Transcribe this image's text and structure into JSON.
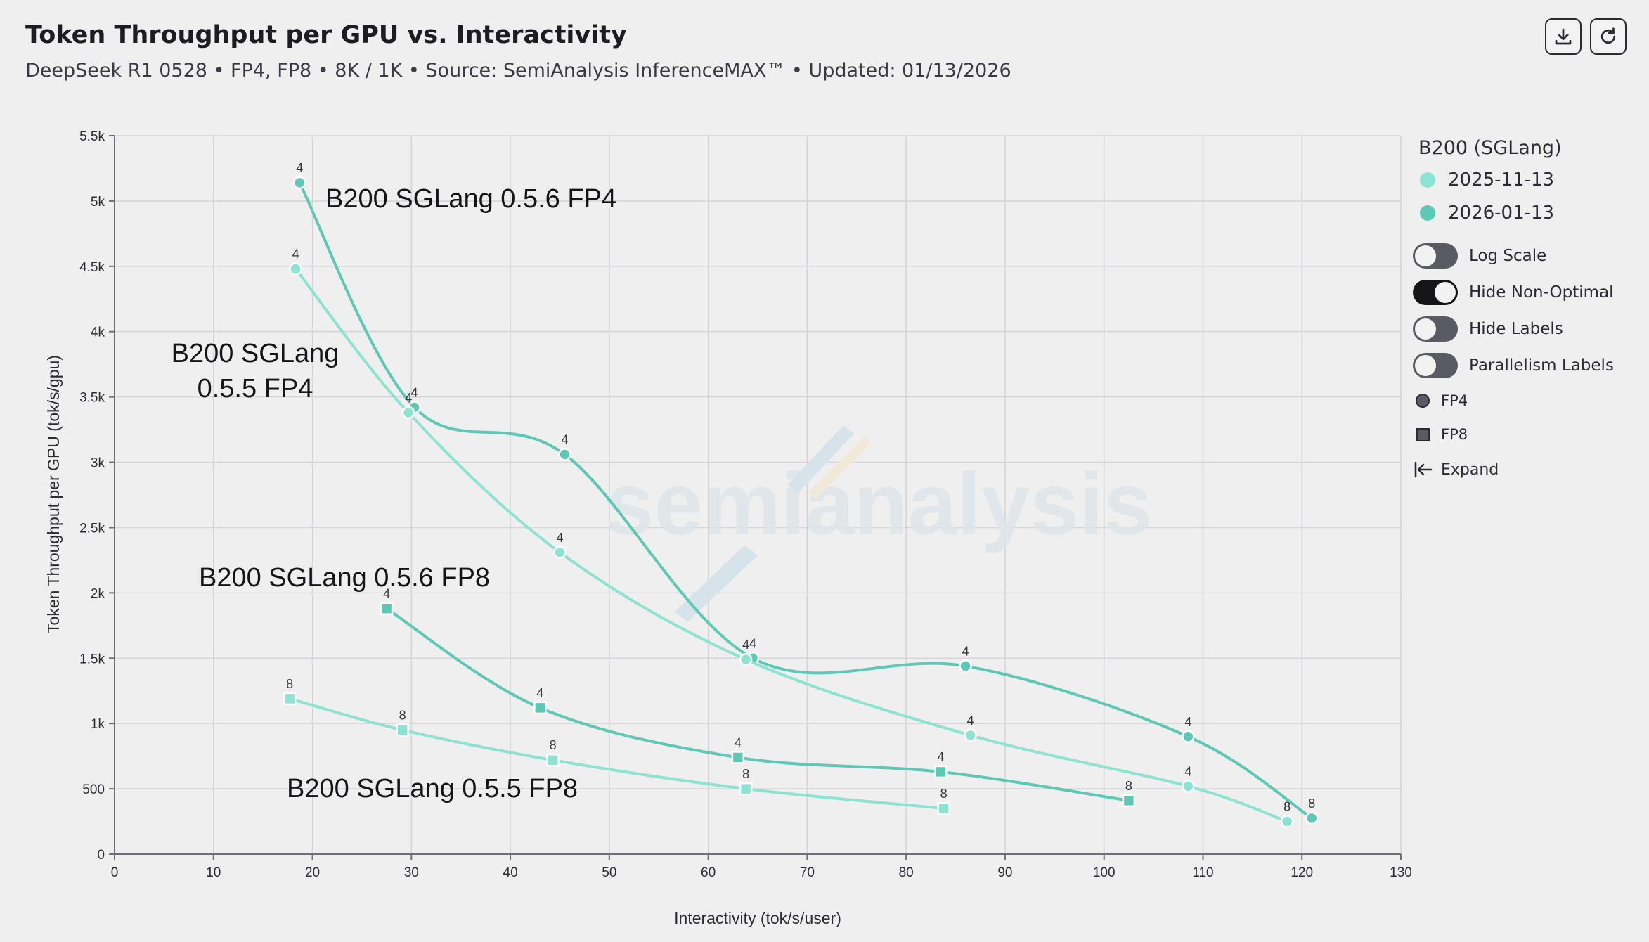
{
  "header": {
    "title": "Token Throughput per GPU vs. Interactivity",
    "subtitle": "DeepSeek R1 0528 • FP4, FP8 • 8K / 1K • Source: SemiAnalysis InferenceMAX™ • Updated: 01/13/2026"
  },
  "toolbar": {
    "download_icon": "download-icon",
    "reset_icon": "reset-icon"
  },
  "legend": {
    "title": "B200 (SGLang)",
    "dates": [
      {
        "label": "2025-11-13",
        "color": "#8de3d2"
      },
      {
        "label": "2026-01-13",
        "color": "#5ec8b6"
      }
    ],
    "toggles": [
      {
        "label": "Log Scale",
        "on": false
      },
      {
        "label": "Hide Non-Optimal",
        "on": true
      },
      {
        "label": "Hide Labels",
        "on": false
      },
      {
        "label": "Parallelism Labels",
        "on": false
      }
    ],
    "shapes": [
      {
        "label": "FP4",
        "shape": "circle"
      },
      {
        "label": "FP8",
        "shape": "square"
      }
    ],
    "expand_label": "Expand"
  },
  "watermark": {
    "text": "semianalysis"
  },
  "chart_data": {
    "type": "line",
    "xlabel": "Interactivity (tok/s/user)",
    "ylabel": "Token Throughput per GPU (tok/s/gpu)",
    "xlim": [
      0,
      130
    ],
    "ylim": [
      0,
      5500
    ],
    "xticks": [
      0,
      10,
      20,
      30,
      40,
      50,
      60,
      70,
      80,
      90,
      100,
      110,
      120,
      130
    ],
    "yticks": [
      0,
      500,
      1000,
      1500,
      2000,
      2500,
      3000,
      3500,
      4000,
      4500,
      5000,
      5500
    ],
    "ytick_labels": [
      "0",
      "500",
      "1k",
      "1.5k",
      "2k",
      "2.5k",
      "3k",
      "3.5k",
      "4k",
      "4.5k",
      "5k",
      "5.5k"
    ],
    "grid": true,
    "legend_position": "right",
    "series": [
      {
        "label": "B200 SGLang 0.5.6 FP4",
        "date": "2026-01-13",
        "precision": "FP4",
        "marker": "circle",
        "color": "#5ec8b6",
        "points": [
          {
            "x": 18.7,
            "y": 5140,
            "label": "4"
          },
          {
            "x": 30.3,
            "y": 3420,
            "label": "4"
          },
          {
            "x": 45.5,
            "y": 3060,
            "label": "4"
          },
          {
            "x": 64.5,
            "y": 1500,
            "label": "4"
          },
          {
            "x": 86.0,
            "y": 1440,
            "label": "4"
          },
          {
            "x": 108.5,
            "y": 900,
            "label": "4"
          },
          {
            "x": 121.0,
            "y": 275,
            "label": "8"
          }
        ]
      },
      {
        "label": "B200 SGLang 0.5.5 FP4",
        "date": "2025-11-13",
        "precision": "FP4",
        "marker": "circle",
        "color": "#8de3d2",
        "points": [
          {
            "x": 18.3,
            "y": 4480,
            "label": "4"
          },
          {
            "x": 29.7,
            "y": 3380,
            "label": "4"
          },
          {
            "x": 45.0,
            "y": 2310,
            "label": "4"
          },
          {
            "x": 63.8,
            "y": 1490,
            "label": "4"
          },
          {
            "x": 86.5,
            "y": 910,
            "label": "4"
          },
          {
            "x": 108.5,
            "y": 520,
            "label": "4"
          },
          {
            "x": 118.5,
            "y": 250,
            "label": "8"
          }
        ]
      },
      {
        "label": "B200 SGLang 0.5.6 FP8",
        "date": "2026-01-13",
        "precision": "FP8",
        "marker": "square",
        "color": "#5ec8b6",
        "points": [
          {
            "x": 27.5,
            "y": 1880,
            "label": "4"
          },
          {
            "x": 43.0,
            "y": 1120,
            "label": "4"
          },
          {
            "x": 63.0,
            "y": 740,
            "label": "4"
          },
          {
            "x": 83.5,
            "y": 630,
            "label": "4"
          },
          {
            "x": 102.5,
            "y": 410,
            "label": "8"
          }
        ]
      },
      {
        "label": "B200 SGLang 0.5.5 FP8",
        "date": "2025-11-13",
        "precision": "FP8",
        "marker": "square",
        "color": "#8de3d2",
        "points": [
          {
            "x": 17.7,
            "y": 1190,
            "label": "8"
          },
          {
            "x": 29.1,
            "y": 950,
            "label": "8"
          },
          {
            "x": 44.3,
            "y": 720,
            "label": "8"
          },
          {
            "x": 63.8,
            "y": 500,
            "label": "8"
          },
          {
            "x": 83.8,
            "y": 350,
            "label": "8"
          }
        ]
      }
    ],
    "annotations": [
      {
        "text": "B200 SGLang 0.5.6 FP4",
        "series": 0
      },
      {
        "text": "B200 SGLang\n0.5.5 FP4",
        "series": 1
      },
      {
        "text": "B200 SGLang 0.5.6 FP8",
        "series": 2
      },
      {
        "text": "B200 SGLang 0.5.5 FP8",
        "series": 3
      }
    ]
  }
}
